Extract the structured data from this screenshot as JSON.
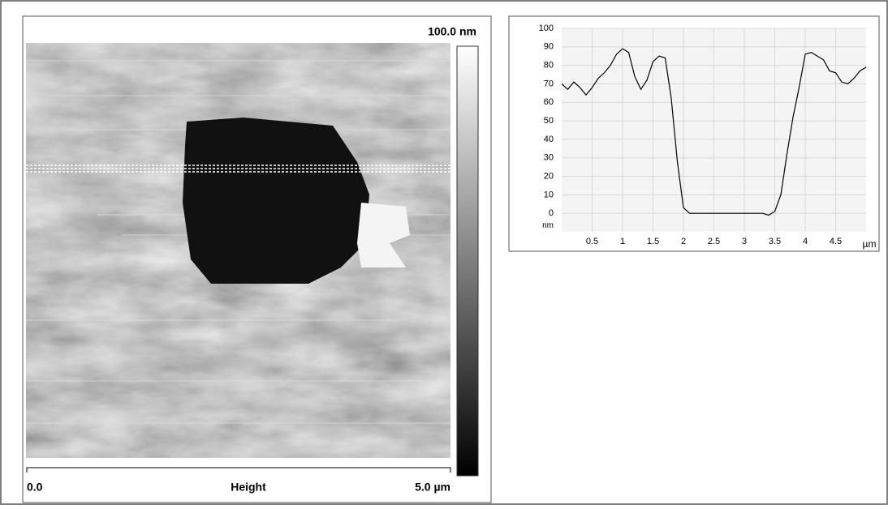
{
  "image": {
    "scale_max": "100.0 nm",
    "x_start": "0.0",
    "channel": "Height",
    "x_end": "5.0 µm"
  },
  "chart_data": {
    "type": "line",
    "x": [
      0,
      0.1,
      0.2,
      0.3,
      0.4,
      0.5,
      0.6,
      0.7,
      0.8,
      0.9,
      1.0,
      1.1,
      1.2,
      1.3,
      1.4,
      1.5,
      1.6,
      1.7,
      1.8,
      1.9,
      2.0,
      2.1,
      2.2,
      2.3,
      2.4,
      2.5,
      2.6,
      2.7,
      2.8,
      2.9,
      3.0,
      3.1,
      3.2,
      3.3,
      3.4,
      3.5,
      3.6,
      3.7,
      3.8,
      3.9,
      4.0,
      4.1,
      4.2,
      4.3,
      4.4,
      4.5,
      4.6,
      4.7,
      4.8,
      4.9,
      5.0
    ],
    "series": [
      {
        "color": "#000000",
        "values": [
          70,
          67,
          71,
          68,
          64,
          68,
          73,
          76,
          80,
          86,
          89,
          87,
          74,
          67,
          72,
          82,
          85,
          84,
          62,
          28,
          3,
          0,
          0,
          0,
          0,
          0,
          0,
          0,
          0,
          0,
          0,
          0,
          0,
          0,
          -1,
          1,
          10,
          32,
          52,
          68,
          86,
          87,
          85,
          83,
          77,
          76,
          71,
          70,
          73,
          77,
          79
        ]
      }
    ],
    "xlim": [
      0,
      5
    ],
    "ylim": [
      -10,
      100
    ],
    "xticks": [
      0.5,
      1,
      1.5,
      2,
      2.5,
      3,
      3.5,
      4,
      4.5
    ],
    "yticks": [
      0,
      10,
      20,
      30,
      40,
      50,
      60,
      70,
      80,
      90,
      100
    ],
    "x_unit": "µm",
    "y_unit": "nm",
    "grid": true
  }
}
